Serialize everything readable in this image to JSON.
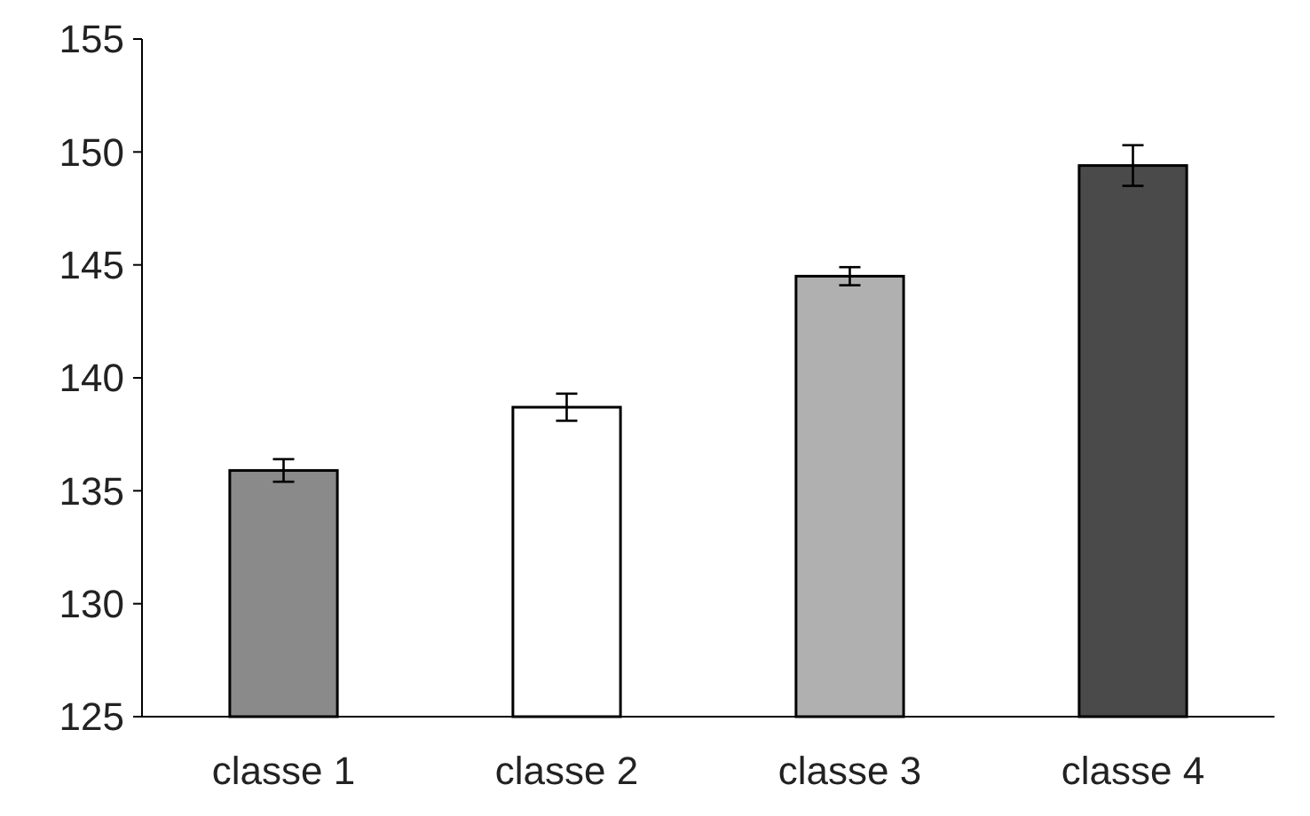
{
  "chart_data": {
    "type": "bar",
    "categories": [
      "classe 1",
      "classe 2",
      "classe 3",
      "classe 4"
    ],
    "values": [
      135.9,
      138.7,
      144.5,
      149.4
    ],
    "errors": [
      0.5,
      0.6,
      0.4,
      0.9
    ],
    "colors": [
      "#8a8a8a",
      "#ffffff",
      "#b0b0b0",
      "#4a4a4a"
    ],
    "ylim": [
      125,
      155
    ],
    "yticks": [
      125,
      130,
      135,
      140,
      145,
      150,
      155
    ],
    "grid": false
  }
}
